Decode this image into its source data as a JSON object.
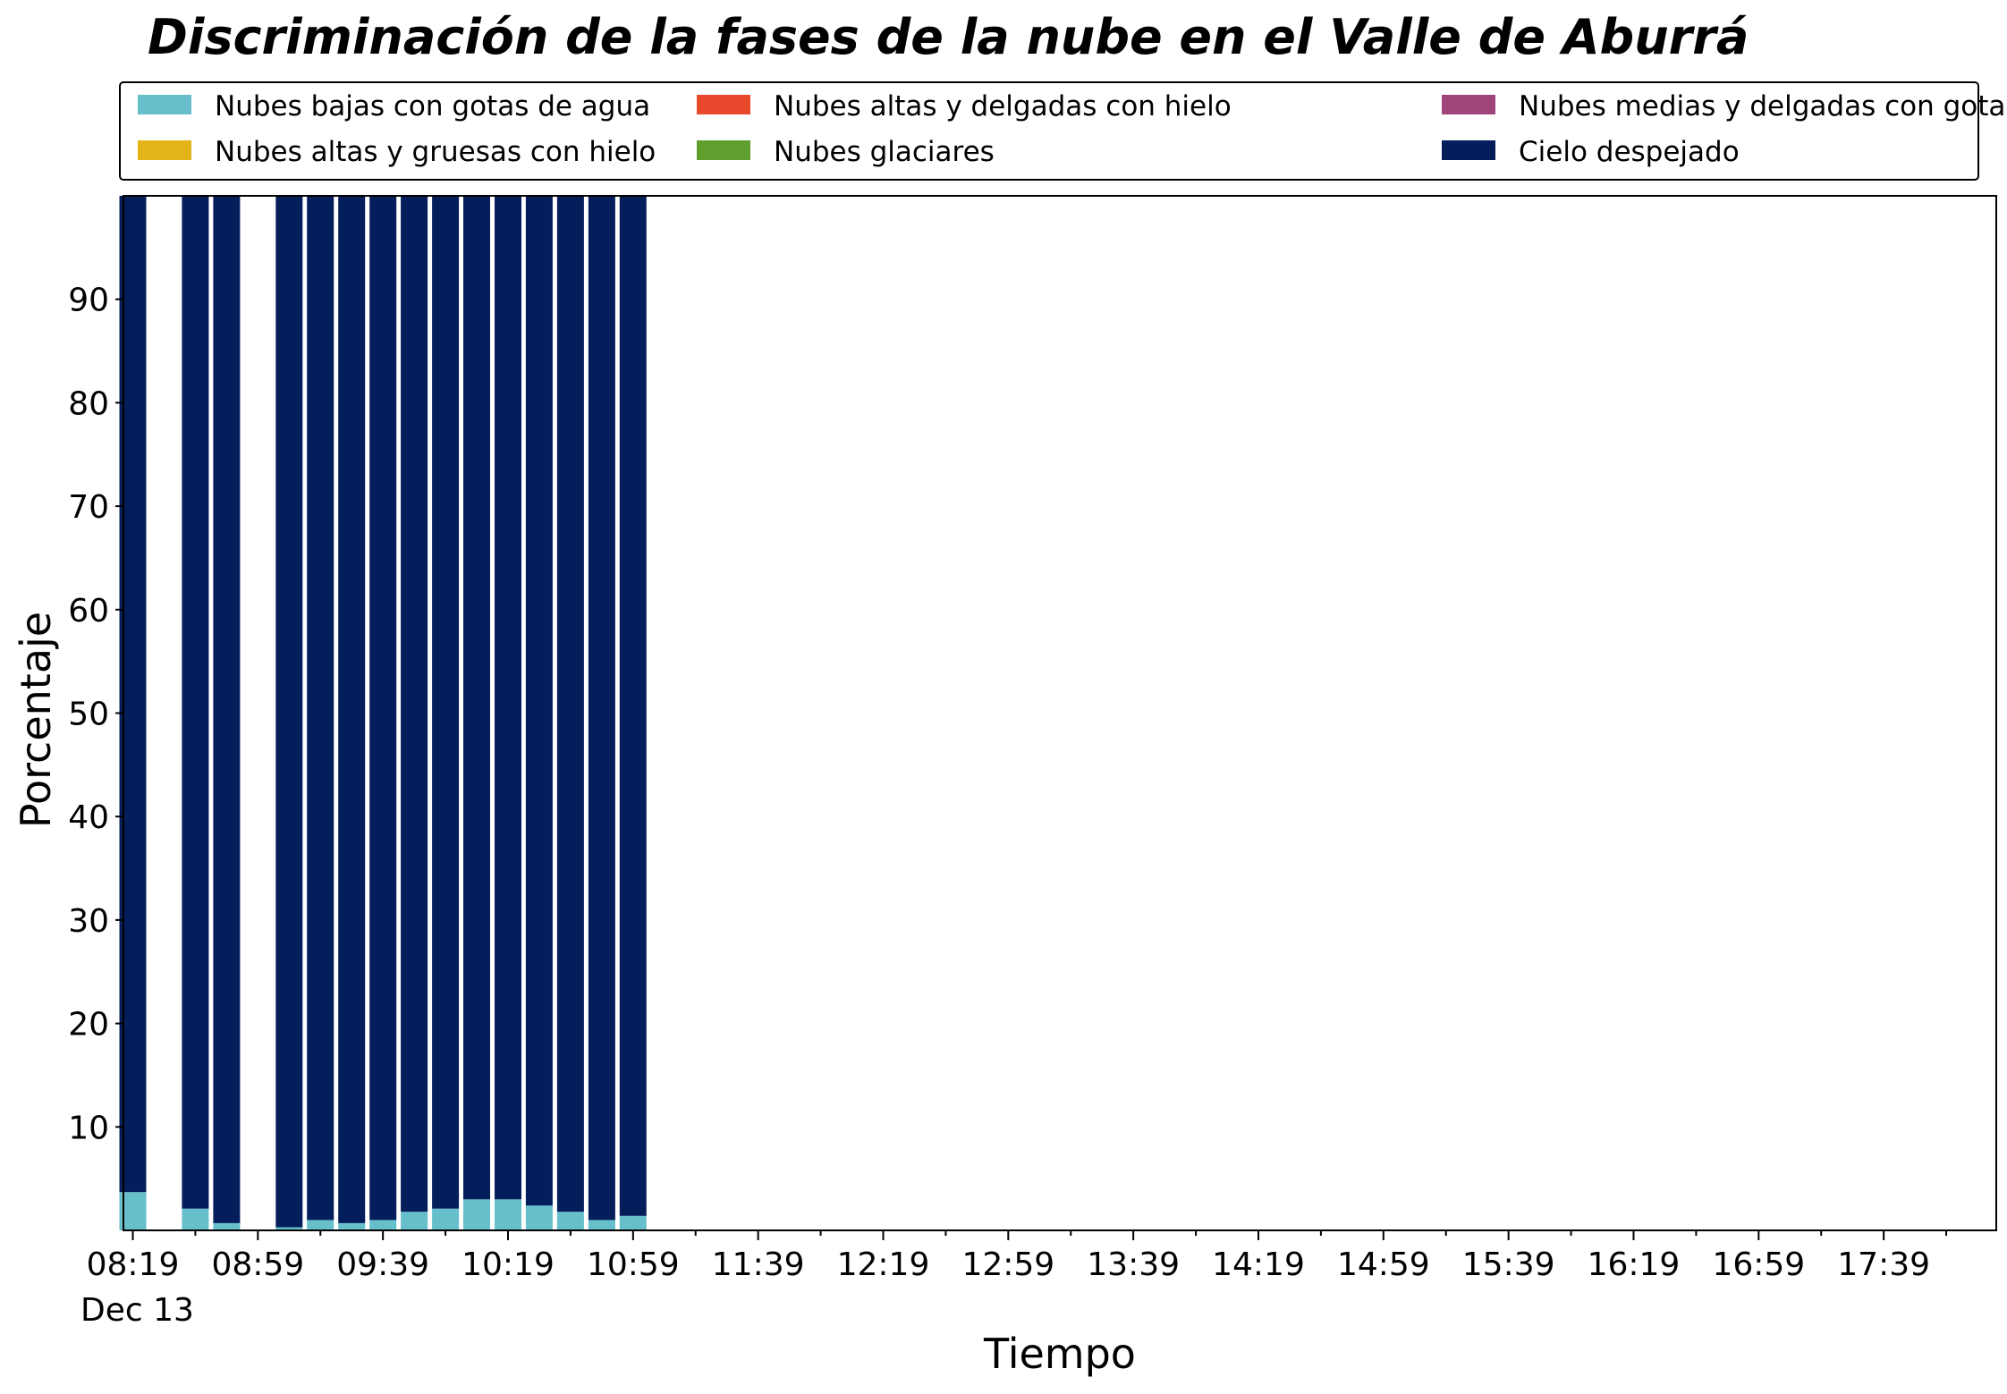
{
  "chart_data": {
    "type": "bar",
    "stacked": true,
    "title": "Discriminación de la fases de la nube en el Valle de Aburrá",
    "xlabel": "Tiempo",
    "ylabel": "Porcentaje",
    "ylim": [
      0,
      100
    ],
    "yticks": [
      10,
      20,
      30,
      40,
      50,
      60,
      70,
      80,
      90
    ],
    "xlim": [
      "08:16",
      "18:15"
    ],
    "x_tick_labels": [
      "08:19",
      "08:59",
      "09:39",
      "10:19",
      "10:59",
      "11:39",
      "12:19",
      "12:59",
      "13:39",
      "14:19",
      "14:59",
      "15:39",
      "16:19",
      "16:59",
      "17:39"
    ],
    "x_date_label": "Dec 13",
    "legend_position": "top",
    "grid": false,
    "legend": [
      {
        "name": "Nubes bajas con gotas de agua",
        "color": "#66bfca"
      },
      {
        "name": "Nubes altas y gruesas con hielo",
        "color": "#e2b417"
      },
      {
        "name": "Nubes altas y delgadas con hielo",
        "color": "#e8492d"
      },
      {
        "name": "Nubes glaciares",
        "color": "#5f9f2e"
      },
      {
        "name": "Nubes medias y delgadas con gotas de agua",
        "color": "#a0457a"
      },
      {
        "name": "Cielo despejado",
        "color": "#041e5c"
      }
    ],
    "categories": [
      "08:19",
      "08:39",
      "08:49",
      "09:09",
      "09:19",
      "09:29",
      "09:39",
      "09:49",
      "09:59",
      "10:09",
      "10:19",
      "10:29",
      "10:39",
      "10:49",
      "10:59"
    ],
    "series": [
      {
        "name": "Nubes bajas con gotas de agua",
        "color": "#66bfca",
        "values": [
          3.7,
          2.1,
          0.7,
          0.3,
          1.0,
          0.7,
          1.0,
          1.8,
          2.1,
          3.0,
          3.0,
          2.4,
          1.8,
          1.0,
          1.4
        ]
      },
      {
        "name": "Cielo despejado",
        "color": "#041e5c",
        "values": [
          96.3,
          97.9,
          99.3,
          99.7,
          99.0,
          99.3,
          99.0,
          98.2,
          97.9,
          97.0,
          97.0,
          97.6,
          98.2,
          99.0,
          98.6
        ]
      }
    ]
  }
}
